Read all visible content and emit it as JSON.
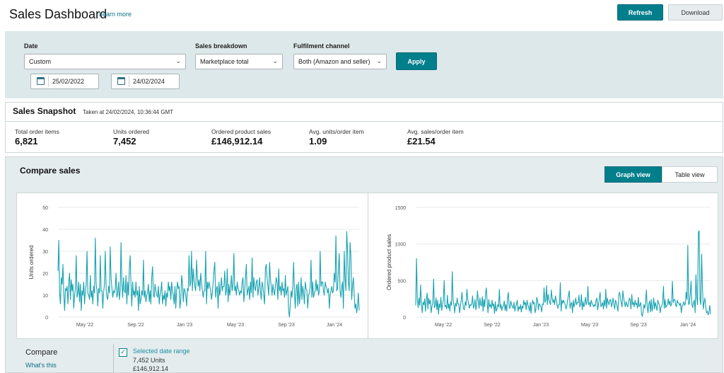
{
  "header": {
    "title": "Sales Dashboard",
    "learn_more": "Learn more",
    "refresh_label": "Refresh",
    "download_label": "Download"
  },
  "filters": {
    "date_label": "Date",
    "date_value": "Custom",
    "start_date": "25/02/2022",
    "end_date": "24/02/2024",
    "breakdown_label": "Sales breakdown",
    "breakdown_value": "Marketplace total",
    "channel_label": "Fulfilment channel",
    "channel_value": "Both (Amazon and seller)",
    "apply_label": "Apply"
  },
  "snapshot": {
    "title": "Sales Snapshot",
    "taken_at": "Taken at 24/02/2024, 10:36:44 GMT",
    "metrics": [
      {
        "label": "Total order items",
        "value": "6,821"
      },
      {
        "label": "Units ordered",
        "value": "7,452"
      },
      {
        "label": "Ordered product sales",
        "value": "£146,912.14"
      },
      {
        "label": "Avg. units/order item",
        "value": "1.09"
      },
      {
        "label": "Avg. sales/order item",
        "value": "£21.54"
      }
    ]
  },
  "compare": {
    "title": "Compare sales",
    "graph_view_label": "Graph view",
    "table_view_label": "Table view",
    "compare_label": "Compare",
    "whats_this": "What's this",
    "selected_range_label": "Selected date range",
    "selected_units": "7,452 Units",
    "selected_sales": "£146,912.14"
  },
  "colors": {
    "accent": "#037f8c",
    "series": "#17a2b1",
    "filter_bg": "#dde8ea"
  },
  "chart_data": [
    {
      "type": "line",
      "ylabel": "Units ordered",
      "xlabel": "",
      "x_ticks": [
        "May '22",
        "Sep '22",
        "Jan '23",
        "May '23",
        "Sep '23",
        "Jan '24"
      ],
      "y_ticks": [
        0,
        10,
        20,
        30,
        40,
        50
      ],
      "ylim": [
        0,
        50
      ],
      "grid": true,
      "series": [
        {
          "values": [
            21,
            35,
            11,
            6,
            18,
            15,
            24,
            11,
            3,
            13,
            12,
            14,
            6,
            16,
            20,
            8,
            17,
            12,
            15,
            4,
            10,
            13,
            28,
            9,
            11,
            16,
            7,
            15,
            3,
            12,
            10,
            16,
            6,
            12,
            15,
            30,
            11,
            10,
            8,
            19,
            9,
            12,
            6,
            14,
            11,
            36,
            15,
            12,
            5,
            13,
            11,
            28,
            12,
            12,
            4,
            11,
            15,
            30,
            13,
            9,
            8,
            14,
            11,
            32,
            18,
            13,
            9,
            12,
            11,
            13,
            20,
            9,
            11,
            16,
            8,
            12,
            34,
            15,
            9,
            18,
            12,
            11,
            19,
            6,
            16,
            10,
            22,
            28,
            14,
            5,
            16,
            10,
            12,
            9,
            16,
            10,
            12,
            3,
            14,
            6,
            8,
            12,
            10,
            26,
            9,
            12,
            7,
            10,
            11,
            15,
            7,
            12,
            6,
            18,
            23,
            10,
            9,
            15,
            12,
            10,
            9,
            14,
            6,
            10,
            12,
            16,
            6,
            10,
            8,
            12,
            5,
            11,
            9,
            16,
            12,
            14,
            8,
            16,
            12,
            10,
            6,
            14,
            4,
            12,
            16,
            13,
            14,
            4,
            8,
            19,
            16,
            7,
            13,
            12,
            10,
            5,
            13,
            12,
            28,
            14,
            16,
            30,
            12,
            22,
            17,
            14,
            12,
            26,
            18,
            14,
            17,
            12,
            20,
            16,
            12,
            9,
            12,
            12,
            30,
            6,
            16,
            13,
            16,
            14,
            12,
            8,
            11,
            16,
            21,
            25,
            9,
            13,
            14,
            4,
            16,
            10,
            13,
            18,
            12,
            14,
            14,
            21,
            10,
            12,
            22,
            7,
            15,
            10,
            13,
            19,
            12,
            15,
            29,
            12,
            14,
            10,
            16,
            13,
            12,
            10,
            12,
            11,
            16,
            18,
            7,
            12,
            18,
            24,
            10,
            12,
            14,
            8,
            16,
            11,
            27,
            9,
            18,
            14,
            12,
            16,
            17,
            10,
            13,
            18,
            12,
            8,
            16,
            14,
            10,
            6,
            22,
            24,
            18,
            14,
            10,
            25,
            18,
            14,
            10,
            15,
            12,
            10,
            14,
            18,
            16,
            8,
            22,
            12,
            14,
            10,
            16,
            12,
            13,
            9,
            19,
            10,
            12,
            14,
            3,
            0,
            6,
            12,
            9,
            14,
            25,
            11,
            4,
            13,
            15,
            5,
            16,
            6,
            10,
            18,
            8,
            14,
            11,
            6,
            16,
            13,
            12,
            4,
            10,
            11,
            14,
            26,
            9,
            16,
            9,
            11,
            12,
            17,
            12,
            15,
            10,
            12,
            30,
            14,
            16,
            16,
            12,
            10,
            16,
            14,
            13,
            11,
            13,
            4,
            10,
            12,
            14,
            11,
            12,
            20,
            16,
            37,
            12,
            13,
            22,
            29,
            12,
            9,
            14,
            16,
            4,
            30,
            18,
            12,
            39,
            30,
            16,
            12,
            34,
            28,
            8,
            14,
            18,
            10,
            4,
            6,
            2,
            5,
            11,
            3
          ]
        }
      ]
    },
    {
      "type": "line",
      "ylabel": "Ordered product sales",
      "xlabel": "",
      "x_ticks": [
        "May '22",
        "Sep '22",
        "Jan '23",
        "May '23",
        "Sep '23",
        "Jan '24"
      ],
      "y_ticks": [
        0,
        500,
        1000,
        1500
      ],
      "ylim": [
        0,
        1500
      ],
      "grid": true,
      "series": [
        {
          "values": [
            160,
            800,
            240,
            130,
            260,
            160,
            440,
            180,
            60,
            200,
            170,
            250,
            80,
            230,
            330,
            110,
            260,
            180,
            230,
            60,
            150,
            190,
            520,
            130,
            150,
            260,
            100,
            230,
            40,
            180,
            130,
            270,
            90,
            170,
            230,
            500,
            140,
            160,
            110,
            300,
            120,
            180,
            80,
            210,
            160,
            620,
            230,
            170,
            60,
            190,
            150,
            260,
            180,
            180,
            60,
            150,
            230,
            340,
            190,
            110,
            100,
            210,
            160,
            380,
            250,
            190,
            120,
            170,
            160,
            190,
            290,
            120,
            160,
            240,
            100,
            170,
            360,
            220,
            120,
            260,
            170,
            150,
            280,
            80,
            240,
            140,
            330,
            400,
            200,
            60,
            240,
            140,
            170,
            120,
            230,
            150,
            180,
            50,
            210,
            80,
            110,
            170,
            140,
            380,
            120,
            170,
            90,
            140,
            150,
            220,
            90,
            170,
            80,
            260,
            340,
            140,
            120,
            220,
            170,
            140,
            120,
            200,
            80,
            140,
            170,
            230,
            80,
            140,
            110,
            170,
            70,
            150,
            120,
            230,
            170,
            200,
            100,
            230,
            170,
            140,
            80,
            200,
            50,
            170,
            230,
            180,
            200,
            60,
            110,
            270,
            230,
            100,
            180,
            170,
            140,
            70,
            180,
            170,
            400,
            200,
            230,
            430,
            170,
            310,
            240,
            200,
            170,
            370,
            260,
            200,
            240,
            170,
            290,
            230,
            170,
            120,
            170,
            170,
            470,
            80,
            230,
            190,
            230,
            200,
            170,
            110,
            150,
            230,
            300,
            360,
            120,
            180,
            200,
            60,
            230,
            140,
            190,
            260,
            170,
            200,
            200,
            300,
            140,
            170,
            310,
            100,
            210,
            140,
            190,
            270,
            170,
            210,
            420,
            170,
            200,
            140,
            230,
            190,
            170,
            140,
            170,
            150,
            230,
            260,
            100,
            170,
            260,
            340,
            140,
            170,
            200,
            110,
            230,
            150,
            380,
            120,
            260,
            200,
            170,
            230,
            240,
            140,
            190,
            260,
            170,
            110,
            230,
            200,
            140,
            80,
            310,
            340,
            260,
            200,
            140,
            360,
            260,
            200,
            140,
            210,
            170,
            140,
            200,
            260,
            230,
            110,
            310,
            170,
            200,
            140,
            230,
            170,
            190,
            120,
            270,
            140,
            170,
            200,
            40,
            10,
            80,
            170,
            120,
            200,
            370,
            150,
            60,
            180,
            220,
            70,
            240,
            80,
            140,
            260,
            110,
            200,
            150,
            90,
            230,
            190,
            170,
            60,
            140,
            150,
            200,
            420,
            120,
            240,
            130,
            160,
            170,
            250,
            170,
            220,
            150,
            180,
            490,
            200,
            240,
            240,
            170,
            140,
            230,
            200,
            190,
            160,
            190,
            60,
            150,
            170,
            210,
            160,
            180,
            340,
            240,
            980,
            170,
            190,
            320,
            490,
            170,
            130,
            200,
            230,
            60,
            580,
            270,
            170,
            1160,
            1180,
            230,
            170,
            860,
            420,
            110,
            200,
            260,
            140,
            60,
            80,
            30,
            70,
            160,
            40
          ]
        }
      ]
    }
  ]
}
